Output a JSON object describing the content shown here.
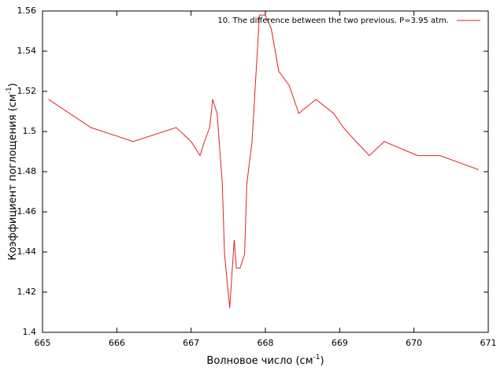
{
  "chart_data": {
    "type": "line",
    "xlabel": {
      "text": "Волновое число (см",
      "sup": "-1",
      "end": ")"
    },
    "ylabel": {
      "text": "Коэффициент поглощения (см",
      "sup": "-1",
      "end": ")"
    },
    "x": [
      665.08,
      665.65,
      666.22,
      666.8,
      667.0,
      667.12,
      667.18,
      667.25,
      667.29,
      667.35,
      667.42,
      667.45,
      667.52,
      667.58,
      667.61,
      667.66,
      667.72,
      667.75,
      667.82,
      667.92,
      668.0,
      668.08,
      668.18,
      668.32,
      668.45,
      668.68,
      668.92,
      669.05,
      669.22,
      669.4,
      669.6,
      670.05,
      670.35,
      670.87
    ],
    "series": [
      {
        "name": "10. The difference between the two previous. P=3.95 atm.",
        "color": "#dd2222",
        "values": [
          1.516,
          1.502,
          1.495,
          1.502,
          1.495,
          1.488,
          1.495,
          1.502,
          1.516,
          1.509,
          1.474,
          1.439,
          1.412,
          1.446,
          1.432,
          1.432,
          1.439,
          1.474,
          1.495,
          1.558,
          1.558,
          1.551,
          1.53,
          1.523,
          1.509,
          1.516,
          1.509,
          1.502,
          1.495,
          1.488,
          1.495,
          1.488,
          1.488,
          1.481
        ]
      }
    ],
    "xlim": [
      665,
      671
    ],
    "xticks": [
      665,
      666,
      667,
      668,
      669,
      670,
      671
    ],
    "ylim": [
      1.4,
      1.56
    ],
    "yticks": [
      1.4,
      1.42,
      1.44,
      1.46,
      1.48,
      1.5,
      1.52,
      1.54,
      1.56
    ],
    "grid": false,
    "legend": "top-right"
  }
}
